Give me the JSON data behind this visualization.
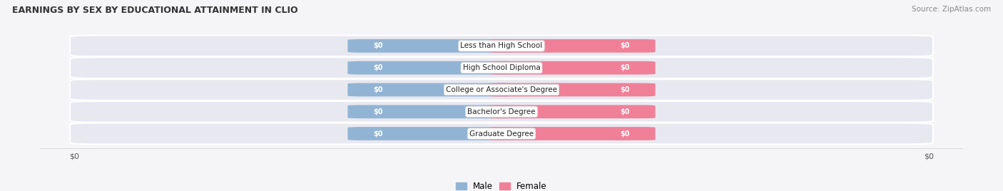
{
  "title": "EARNINGS BY SEX BY EDUCATIONAL ATTAINMENT IN CLIO",
  "source": "Source: ZipAtlas.com",
  "categories": [
    "Less than High School",
    "High School Diploma",
    "College or Associate's Degree",
    "Bachelor's Degree",
    "Graduate Degree"
  ],
  "male_values": [
    0,
    0,
    0,
    0,
    0
  ],
  "female_values": [
    0,
    0,
    0,
    0,
    0
  ],
  "male_color": "#92b4d4",
  "female_color": "#f08098",
  "row_bg_color": "#e8e8f0",
  "background_color": "#f5f5f8",
  "value_label": "$0",
  "x_tick_labels": [
    "$0",
    "$0"
  ]
}
